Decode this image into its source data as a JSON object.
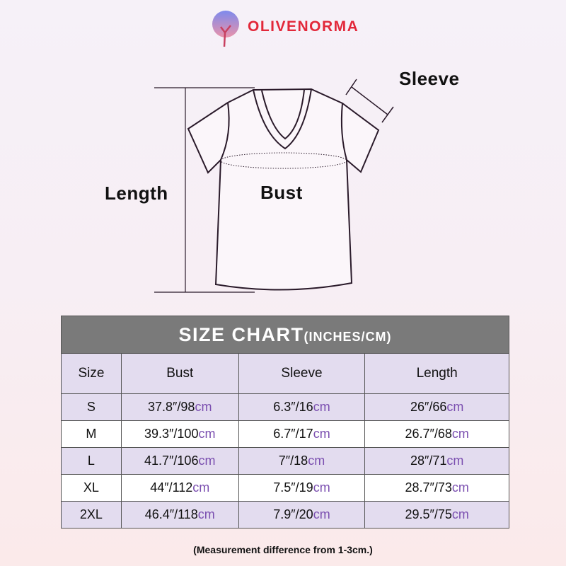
{
  "brand": {
    "name": "OLIVENORMA"
  },
  "diagram": {
    "sleeve_label": "Sleeve",
    "length_label": "Length",
    "bust_label": "Bust"
  },
  "table": {
    "title": "SIZE CHART",
    "title_unit": "(INCHES/CM)",
    "headers": [
      "Size",
      "Bust",
      "Sleeve",
      "Length"
    ],
    "unit": "cm",
    "rows": [
      {
        "size": "S",
        "bust": "37.8″/98",
        "sleeve": "6.3″/16",
        "length": "26″/66"
      },
      {
        "size": "M",
        "bust": "39.3″/100",
        "sleeve": "6.7″/17",
        "length": "26.7″/68"
      },
      {
        "size": "L",
        "bust": "41.7″/106",
        "sleeve": "7″/18",
        "length": "28″/71"
      },
      {
        "size": "XL",
        "bust": "44″/112",
        "sleeve": "7.5″/19",
        "length": "28.7″/73"
      },
      {
        "size": "2XL",
        "bust": "46.4″/118",
        "sleeve": "7.9″/20",
        "length": "29.5″/75"
      }
    ]
  },
  "note": "(Measurement difference from 1-3cm.)",
  "colors": {
    "header_bg": "#7a7a7a",
    "row_alt": "#e3dcef",
    "unit": "#7b4fb0",
    "brand": "#e2283a"
  }
}
